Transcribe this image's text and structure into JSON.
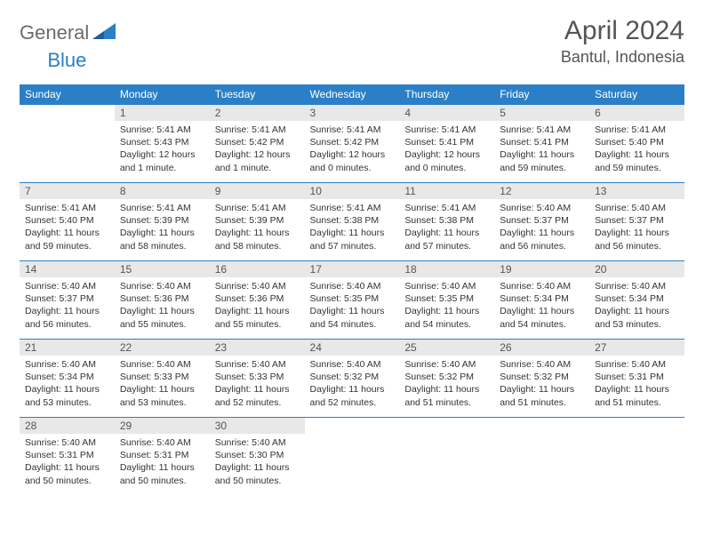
{
  "brand": {
    "part1": "General",
    "part2": "Blue"
  },
  "title": "April 2024",
  "location": "Bantul, Indonesia",
  "header_bg": "#2b7fc7",
  "header_fg": "#ffffff",
  "daynum_bg": "#e8e8e8",
  "border_color": "#2b7fc7",
  "text_color": "#333333",
  "weekdays": [
    "Sunday",
    "Monday",
    "Tuesday",
    "Wednesday",
    "Thursday",
    "Friday",
    "Saturday"
  ],
  "weeks": [
    [
      null,
      {
        "n": "1",
        "sr": "5:41 AM",
        "ss": "5:43 PM",
        "dl": "12 hours and 1 minute."
      },
      {
        "n": "2",
        "sr": "5:41 AM",
        "ss": "5:42 PM",
        "dl": "12 hours and 1 minute."
      },
      {
        "n": "3",
        "sr": "5:41 AM",
        "ss": "5:42 PM",
        "dl": "12 hours and 0 minutes."
      },
      {
        "n": "4",
        "sr": "5:41 AM",
        "ss": "5:41 PM",
        "dl": "12 hours and 0 minutes."
      },
      {
        "n": "5",
        "sr": "5:41 AM",
        "ss": "5:41 PM",
        "dl": "11 hours and 59 minutes."
      },
      {
        "n": "6",
        "sr": "5:41 AM",
        "ss": "5:40 PM",
        "dl": "11 hours and 59 minutes."
      }
    ],
    [
      {
        "n": "7",
        "sr": "5:41 AM",
        "ss": "5:40 PM",
        "dl": "11 hours and 59 minutes."
      },
      {
        "n": "8",
        "sr": "5:41 AM",
        "ss": "5:39 PM",
        "dl": "11 hours and 58 minutes."
      },
      {
        "n": "9",
        "sr": "5:41 AM",
        "ss": "5:39 PM",
        "dl": "11 hours and 58 minutes."
      },
      {
        "n": "10",
        "sr": "5:41 AM",
        "ss": "5:38 PM",
        "dl": "11 hours and 57 minutes."
      },
      {
        "n": "11",
        "sr": "5:41 AM",
        "ss": "5:38 PM",
        "dl": "11 hours and 57 minutes."
      },
      {
        "n": "12",
        "sr": "5:40 AM",
        "ss": "5:37 PM",
        "dl": "11 hours and 56 minutes."
      },
      {
        "n": "13",
        "sr": "5:40 AM",
        "ss": "5:37 PM",
        "dl": "11 hours and 56 minutes."
      }
    ],
    [
      {
        "n": "14",
        "sr": "5:40 AM",
        "ss": "5:37 PM",
        "dl": "11 hours and 56 minutes."
      },
      {
        "n": "15",
        "sr": "5:40 AM",
        "ss": "5:36 PM",
        "dl": "11 hours and 55 minutes."
      },
      {
        "n": "16",
        "sr": "5:40 AM",
        "ss": "5:36 PM",
        "dl": "11 hours and 55 minutes."
      },
      {
        "n": "17",
        "sr": "5:40 AM",
        "ss": "5:35 PM",
        "dl": "11 hours and 54 minutes."
      },
      {
        "n": "18",
        "sr": "5:40 AM",
        "ss": "5:35 PM",
        "dl": "11 hours and 54 minutes."
      },
      {
        "n": "19",
        "sr": "5:40 AM",
        "ss": "5:34 PM",
        "dl": "11 hours and 54 minutes."
      },
      {
        "n": "20",
        "sr": "5:40 AM",
        "ss": "5:34 PM",
        "dl": "11 hours and 53 minutes."
      }
    ],
    [
      {
        "n": "21",
        "sr": "5:40 AM",
        "ss": "5:34 PM",
        "dl": "11 hours and 53 minutes."
      },
      {
        "n": "22",
        "sr": "5:40 AM",
        "ss": "5:33 PM",
        "dl": "11 hours and 53 minutes."
      },
      {
        "n": "23",
        "sr": "5:40 AM",
        "ss": "5:33 PM",
        "dl": "11 hours and 52 minutes."
      },
      {
        "n": "24",
        "sr": "5:40 AM",
        "ss": "5:32 PM",
        "dl": "11 hours and 52 minutes."
      },
      {
        "n": "25",
        "sr": "5:40 AM",
        "ss": "5:32 PM",
        "dl": "11 hours and 51 minutes."
      },
      {
        "n": "26",
        "sr": "5:40 AM",
        "ss": "5:32 PM",
        "dl": "11 hours and 51 minutes."
      },
      {
        "n": "27",
        "sr": "5:40 AM",
        "ss": "5:31 PM",
        "dl": "11 hours and 51 minutes."
      }
    ],
    [
      {
        "n": "28",
        "sr": "5:40 AM",
        "ss": "5:31 PM",
        "dl": "11 hours and 50 minutes."
      },
      {
        "n": "29",
        "sr": "5:40 AM",
        "ss": "5:31 PM",
        "dl": "11 hours and 50 minutes."
      },
      {
        "n": "30",
        "sr": "5:40 AM",
        "ss": "5:30 PM",
        "dl": "11 hours and 50 minutes."
      },
      null,
      null,
      null,
      null
    ]
  ],
  "labels": {
    "sunrise": "Sunrise:",
    "sunset": "Sunset:",
    "daylight": "Daylight:"
  }
}
